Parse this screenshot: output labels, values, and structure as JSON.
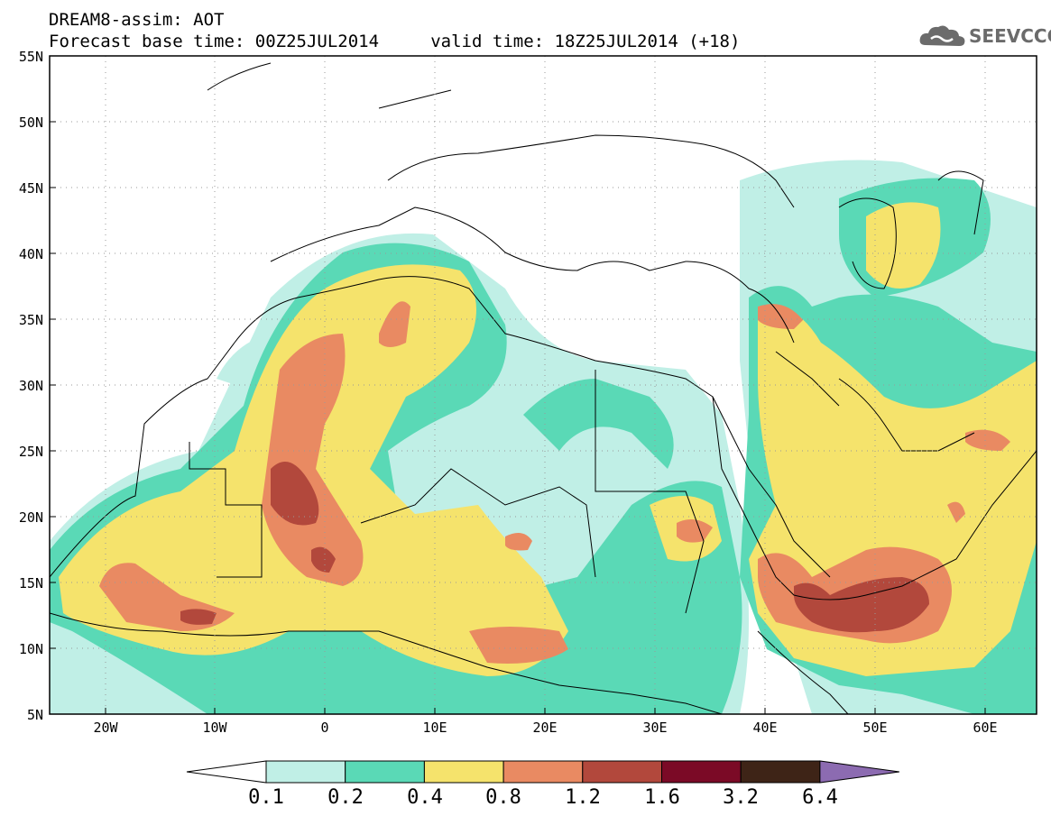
{
  "header": {
    "line1": "DREAM8-assim: AOT",
    "line2": "Forecast base time: 00Z25JUL2014     valid time: 18Z25JUL2014 (+18)"
  },
  "logo": {
    "text": "SEEVCCC",
    "icon": "cloud-icon"
  },
  "map": {
    "lon_range": [
      -25,
      65
    ],
    "lat_range": [
      5,
      55
    ],
    "lat_labels": [
      "55N",
      "50N",
      "45N",
      "40N",
      "35N",
      "30N",
      "25N",
      "20N",
      "15N",
      "10N",
      "5N"
    ],
    "lon_labels": [
      "20W",
      "10W",
      "0",
      "10E",
      "20E",
      "30E",
      "40E",
      "50E",
      "60E"
    ],
    "gridlines": true
  },
  "colorbar": {
    "labels": [
      "0.1",
      "0.2",
      "0.4",
      "0.8",
      "1.2",
      "1.6",
      "3.2",
      "6.4"
    ],
    "colors": [
      "#ffffff",
      "#c0efe6",
      "#5ad9b6",
      "#f5e36c",
      "#e98a62",
      "#b2483c",
      "#7b0a26",
      "#3e2417",
      "#8c6bb1"
    ]
  },
  "colors": {
    "bin_0.1_0.2": "#c0efe6",
    "bin_0.2_0.4": "#5ad9b6",
    "bin_0.4_0.8": "#f5e36c",
    "bin_0.8_1.2": "#e98a62",
    "bin_1.2_1.6": "#b2483c"
  }
}
